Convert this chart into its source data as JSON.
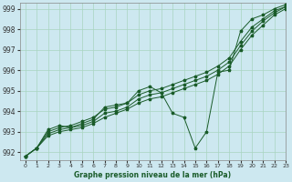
{
  "background_color": "#cde8f0",
  "grid_color": "#a8d4c0",
  "line_color": "#1a5c2a",
  "title": "Graphe pression niveau de la mer (hPa)",
  "xlim": [
    -0.5,
    23
  ],
  "ylim": [
    991.6,
    999.3
  ],
  "yticks": [
    992,
    993,
    994,
    995,
    996,
    997,
    998,
    999
  ],
  "xticks": [
    0,
    1,
    2,
    3,
    4,
    5,
    6,
    7,
    8,
    9,
    10,
    11,
    12,
    13,
    14,
    15,
    16,
    17,
    18,
    19,
    20,
    21,
    22,
    23
  ],
  "series": [
    [
      991.8,
      992.2,
      992.8,
      993.0,
      993.1,
      993.2,
      993.4,
      993.7,
      993.9,
      994.1,
      994.4,
      994.6,
      994.7,
      994.9,
      995.1,
      995.3,
      995.5,
      995.8,
      996.2,
      997.0,
      997.7,
      998.2,
      998.7,
      999.0
    ],
    [
      991.8,
      992.2,
      992.9,
      993.1,
      993.2,
      993.3,
      993.5,
      993.9,
      994.0,
      994.2,
      994.6,
      994.8,
      994.9,
      995.1,
      995.3,
      995.5,
      995.7,
      996.0,
      996.4,
      997.2,
      997.9,
      998.4,
      998.8,
      999.1
    ],
    [
      991.8,
      992.2,
      993.0,
      993.2,
      993.3,
      993.5,
      993.7,
      994.1,
      994.2,
      994.4,
      994.8,
      995.0,
      995.1,
      995.3,
      995.5,
      995.7,
      995.9,
      996.2,
      996.6,
      997.4,
      998.1,
      998.5,
      998.9,
      999.1
    ],
    [
      991.8,
      992.2,
      993.1,
      993.3,
      993.2,
      993.4,
      993.6,
      994.2,
      994.3,
      994.4,
      995.0,
      995.2,
      994.9,
      993.9,
      993.7,
      992.2,
      993.0,
      995.9,
      996.0,
      997.9,
      998.5,
      998.7,
      999.0,
      999.2
    ]
  ]
}
